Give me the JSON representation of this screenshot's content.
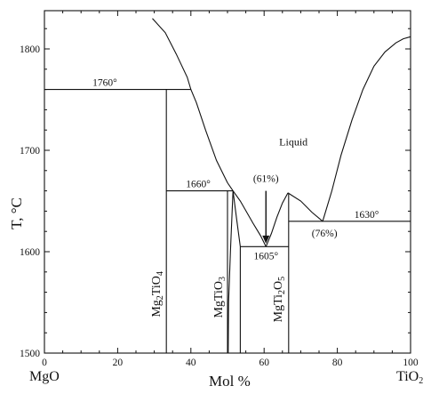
{
  "chart_data": {
    "type": "phase-diagram",
    "xlabel": "Mol %",
    "ylabel": "T, °C",
    "x_end_labels": {
      "left": "MgO",
      "right": "TiO2"
    },
    "xlim": [
      0,
      100
    ],
    "ylim": [
      1500,
      1800
    ],
    "x_ticks": [
      {
        "value": 0,
        "label": "0"
      },
      {
        "value": 20,
        "label": "20"
      },
      {
        "value": 40,
        "label": "40"
      },
      {
        "value": 60,
        "label": "60"
      },
      {
        "value": 80,
        "label": "80"
      },
      {
        "value": 100,
        "label": "100"
      }
    ],
    "y_ticks": [
      {
        "value": 1500,
        "label": "1500"
      },
      {
        "value": 1600,
        "label": "1600"
      },
      {
        "value": 1700,
        "label": "1700"
      },
      {
        "value": 1800,
        "label": "1800"
      }
    ],
    "liquidus_curves": [
      {
        "name": "left-liquidus",
        "points": [
          [
            29.5,
            1830
          ],
          [
            33,
            1816
          ],
          [
            36,
            1795
          ],
          [
            39,
            1772
          ],
          [
            40,
            1760
          ],
          [
            41.5,
            1747
          ],
          [
            44,
            1720
          ],
          [
            47,
            1690
          ],
          [
            50,
            1668
          ],
          [
            51.5,
            1660
          ]
        ]
      },
      {
        "name": "mg2tio3-liquidus",
        "points": [
          [
            51.5,
            1660
          ],
          [
            53.5,
            1650
          ],
          [
            57,
            1628
          ],
          [
            59,
            1616
          ],
          [
            60.5,
            1605
          ]
        ]
      },
      {
        "name": "mgti2o5-left-liquidus",
        "points": [
          [
            60.5,
            1605
          ],
          [
            62,
            1618
          ],
          [
            63.5,
            1634
          ],
          [
            65,
            1648
          ],
          [
            66.5,
            1658
          ]
        ]
      },
      {
        "name": "mgti2o5-right-liquidus",
        "points": [
          [
            66.5,
            1658
          ],
          [
            70,
            1650
          ],
          [
            73,
            1639
          ],
          [
            76,
            1630
          ]
        ]
      },
      {
        "name": "tio2-liquidus",
        "points": [
          [
            76,
            1630
          ],
          [
            78.5,
            1660
          ],
          [
            81,
            1695
          ],
          [
            84,
            1730
          ],
          [
            87,
            1760
          ],
          [
            90,
            1783
          ],
          [
            93,
            1797
          ],
          [
            96,
            1806
          ],
          [
            98,
            1810
          ],
          [
            100,
            1812
          ]
        ]
      }
    ],
    "isotherms": [
      {
        "name": "isotherm-1760",
        "t": 1760,
        "x1": 0,
        "x2": 40,
        "label": "1760°",
        "label_x": 16.5
      },
      {
        "name": "isotherm-1660",
        "t": 1660,
        "x1": 33.3,
        "x2": 51.5,
        "label": "1660°",
        "label_x": 42
      },
      {
        "name": "isotherm-1605",
        "t": 1605,
        "x1": 53.5,
        "x2": 66.7,
        "label": "1605°",
        "label_x": 60.5
      },
      {
        "name": "isotherm-1630",
        "t": 1630,
        "x1": 66.7,
        "x2": 100,
        "label": "1630°",
        "label_x": 88
      }
    ],
    "compound_lines": [
      {
        "name": "mg2tio4-line",
        "x": 33.3,
        "t1": 1500,
        "t2": 1760
      },
      {
        "name": "mgtio3-line",
        "x": 50,
        "t1": 1500,
        "t2": 1660
      },
      {
        "name": "mgti2o5-line",
        "x": 66.7,
        "t1": 1500,
        "t2": 1658
      }
    ],
    "solid_solution_boundaries": [
      {
        "name": "mgtio3-ss-left",
        "points": [
          [
            51.5,
            1660
          ],
          [
            50.8,
            1600
          ],
          [
            50.3,
            1550
          ],
          [
            50.2,
            1500
          ]
        ]
      },
      {
        "name": "mgtio3-ss-right",
        "points": [
          [
            51.5,
            1660
          ],
          [
            52.5,
            1632
          ],
          [
            53.5,
            1605
          ],
          [
            53.5,
            1500
          ]
        ]
      }
    ],
    "compounds": [
      {
        "name": "mg2tio4",
        "base": "Mg",
        "parts": [
          [
            "Mg",
            ""
          ],
          [
            "2",
            "sub"
          ],
          [
            "TiO",
            ""
          ],
          [
            "4",
            "sub"
          ]
        ],
        "x": 31.5,
        "t": 1558
      },
      {
        "name": "mgtio3",
        "parts": [
          [
            "MgTiO",
            ""
          ],
          [
            "3",
            "sub"
          ]
        ],
        "x": 48.5,
        "t": 1555
      },
      {
        "name": "mgti2o5",
        "parts": [
          [
            "MgTi",
            ""
          ],
          [
            "2",
            "sub"
          ],
          [
            "O",
            ""
          ],
          [
            "5",
            "sub"
          ]
        ],
        "x": 64.8,
        "t": 1553
      }
    ],
    "annotations": [
      {
        "name": "liquid-label",
        "text": "Liquid",
        "x": 68,
        "t": 1705
      },
      {
        "name": "eutectic-61-label",
        "text": "(61%)",
        "x": 60.5,
        "t": 1669
      },
      {
        "name": "eutectic-76-label",
        "text": "(76%)",
        "x": 76.5,
        "t": 1615
      }
    ],
    "arrow": {
      "name": "eutectic-arrow",
      "x": 60.5,
      "t_from": 1660,
      "t_to": 1608
    },
    "grid": false
  }
}
